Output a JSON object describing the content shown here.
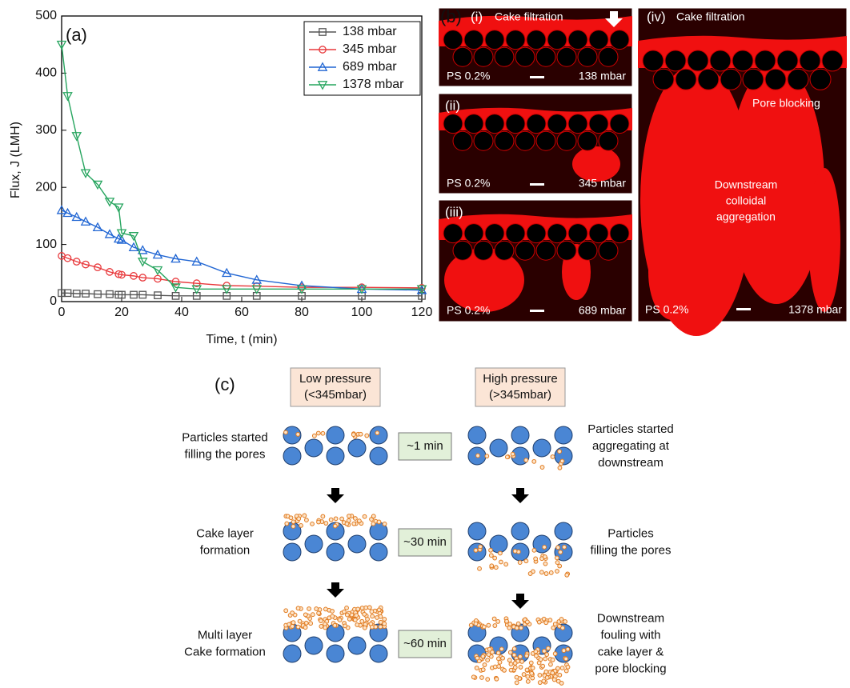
{
  "chart_data": {
    "type": "line",
    "panel_label": "(a)",
    "x_label": "Time, t (min)",
    "y_label": "Flux, J (LMH)",
    "x": [
      0,
      2,
      5,
      8,
      12,
      16,
      19,
      20,
      24,
      27,
      32,
      38,
      45,
      55,
      65,
      80,
      100,
      120
    ],
    "series": [
      {
        "name": "138 mbar",
        "color": "#555555",
        "marker": "square",
        "values": [
          15,
          15,
          14,
          14,
          13,
          13,
          12,
          12,
          12,
          12,
          11,
          10,
          10,
          10,
          10,
          10,
          10,
          10
        ]
      },
      {
        "name": "345 mbar",
        "color": "#e8393c",
        "marker": "circle",
        "values": [
          80,
          76,
          70,
          65,
          60,
          52,
          48,
          47,
          45,
          42,
          40,
          35,
          32,
          28,
          27,
          25,
          25,
          24
        ]
      },
      {
        "name": "689 mbar",
        "color": "#2166d3",
        "marker": "triangle-up",
        "values": [
          160,
          155,
          148,
          140,
          130,
          118,
          110,
          108,
          95,
          90,
          82,
          75,
          70,
          50,
          38,
          28,
          22,
          20
        ]
      },
      {
        "name": "1378 mbar",
        "color": "#27a55f",
        "marker": "triangle-down",
        "values": [
          450,
          360,
          290,
          225,
          205,
          175,
          165,
          120,
          115,
          70,
          55,
          25,
          22,
          22,
          22,
          22,
          22,
          22
        ]
      }
    ],
    "xlim": [
      0,
      120
    ],
    "ylim": [
      0,
      500
    ],
    "xticks": [
      0,
      20,
      40,
      60,
      80,
      100,
      120
    ],
    "yticks": [
      0,
      100,
      200,
      300,
      400,
      500
    ],
    "legend": "upper right"
  },
  "micrographs": {
    "panel_label": "(b)",
    "panels": [
      {
        "label": "(i)",
        "annotation": "Cake filtration",
        "concentration": "PS 0.2%",
        "pressure": "138 mbar"
      },
      {
        "label": "(ii)",
        "concentration": "PS 0.2%",
        "pressure": "345 mbar"
      },
      {
        "label": "(iii)",
        "concentration": "PS 0.2%",
        "pressure": "689 mbar"
      },
      {
        "label": "(iv)",
        "annotation": "Cake filtration",
        "pore_annotation": "Pore blocking",
        "downstream_annotation": [
          "Downstream",
          "colloidal",
          "aggregation"
        ],
        "concentration": "PS 0.2%",
        "pressure": "1378 mbar"
      }
    ]
  },
  "schematic": {
    "panel_label": "(c)",
    "low_pressure": [
      "Low pressure",
      "(<345mbar)"
    ],
    "high_pressure": [
      "High pressure",
      "(>345mbar)"
    ],
    "rows": [
      {
        "low_label": [
          "Particles started",
          "filling the pores"
        ],
        "time": "~1 min",
        "high_label": [
          "Particles started",
          "aggregating at",
          "downstream"
        ]
      },
      {
        "low_label": [
          "Cake layer",
          "formation"
        ],
        "time": "~30 min",
        "high_label": [
          "Particles",
          "filling the pores"
        ]
      },
      {
        "low_label": [
          "Multi layer",
          "Cake formation"
        ],
        "time": "~60 min",
        "high_label": [
          "Downstream",
          "fouling with",
          "cake layer &",
          "pore blocking"
        ]
      }
    ]
  }
}
